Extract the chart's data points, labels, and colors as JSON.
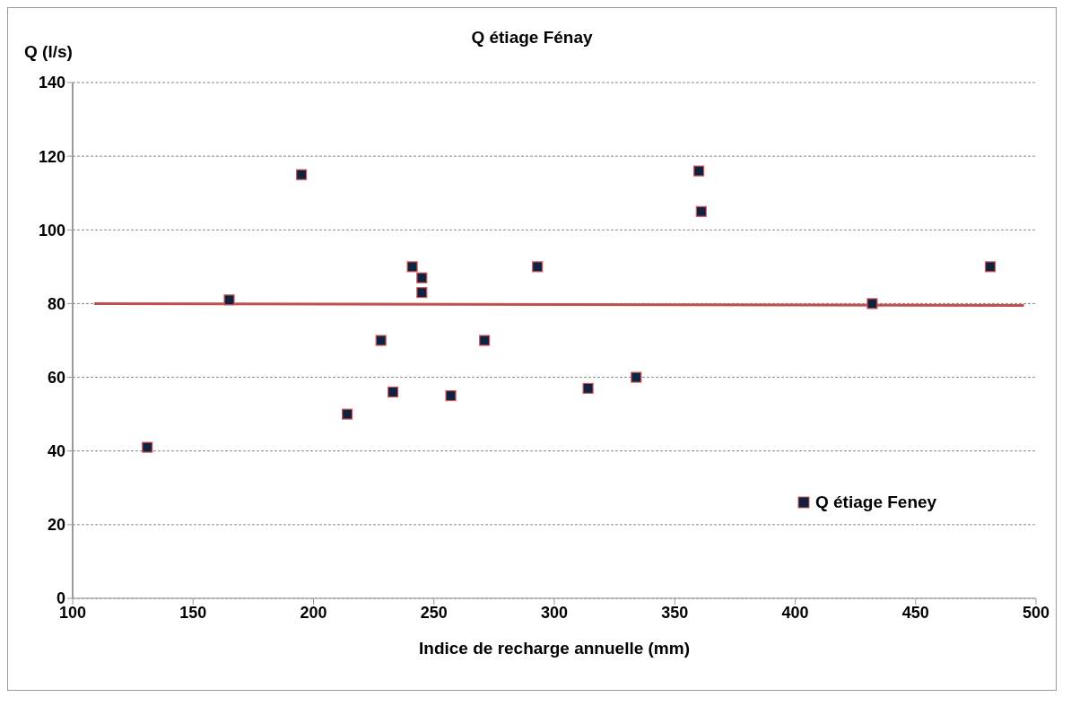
{
  "chart_data": {
    "type": "scatter",
    "title": "Q étiage Fénay",
    "xlabel": "Indice de recharge annuelle  (mm)",
    "ylabel": "Q (l/s)",
    "xlim": [
      100,
      500
    ],
    "xticks": [
      100,
      150,
      200,
      250,
      300,
      350,
      400,
      450,
      500
    ],
    "ylim": [
      0,
      140
    ],
    "yticks": [
      0,
      20,
      40,
      60,
      80,
      100,
      120,
      140
    ],
    "grid": "y",
    "legend": "bottom right",
    "series": [
      {
        "name": "Q étiage Feney",
        "marker": "square",
        "color": "#0f2341",
        "x": [
          131,
          165,
          195,
          214,
          228,
          233,
          241,
          245,
          245,
          257,
          271,
          293,
          314,
          334,
          360,
          361,
          432,
          481
        ],
        "values": [
          41,
          81,
          115,
          50,
          70,
          56,
          90,
          87,
          83,
          55,
          70,
          90,
          57,
          60,
          116,
          105,
          80,
          90
        ]
      },
      {
        "type": "line",
        "marker": "none",
        "color": "#c0504d",
        "line_style": "solid",
        "x": [
          109,
          495
        ],
        "values": [
          80,
          79.5
        ]
      }
    ]
  }
}
